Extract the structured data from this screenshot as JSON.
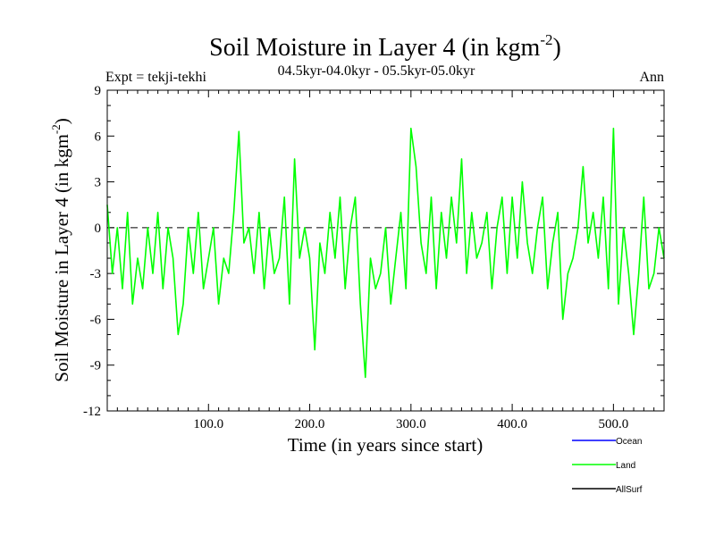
{
  "chart_data": {
    "type": "line",
    "title": "Soil Moisture in Layer 4 (in kgm",
    "title_sup": "-2",
    "title_close": ")",
    "subtitle": "04.5kyr-04.0kyr - 05.5kyr-05.0kyr",
    "left_label": "Expt = tekji-tekhi",
    "right_label": "Ann",
    "xlabel": "Time (in years since start)",
    "ylabel": "Soil Moisture in Layer 4 (in kgm",
    "ylabel_sup": "-2",
    "ylabel_close": ")",
    "xlim": [
      0,
      550
    ],
    "ylim": [
      -12,
      9
    ],
    "xticks": [
      100,
      200,
      300,
      400,
      500
    ],
    "xtick_labels": [
      "100.0",
      "200.0",
      "300.0",
      "400.0",
      "500.0"
    ],
    "yticks": [
      9,
      6,
      3,
      0,
      -3,
      -6,
      -9,
      -12
    ],
    "ytick_labels": [
      "9",
      "6",
      "3",
      "0",
      "-3",
      "-6",
      "-9",
      "-12"
    ],
    "zero_line": {
      "y": 0,
      "style": "dashed"
    },
    "series": [
      {
        "name": "Land",
        "color": "#00ff00",
        "x": [
          0,
          5,
          10,
          15,
          20,
          25,
          30,
          35,
          40,
          45,
          50,
          55,
          60,
          65,
          70,
          75,
          80,
          85,
          90,
          95,
          100,
          105,
          110,
          115,
          120,
          125,
          130,
          135,
          140,
          145,
          150,
          155,
          160,
          165,
          170,
          175,
          180,
          185,
          190,
          195,
          200,
          205,
          210,
          215,
          220,
          225,
          230,
          235,
          240,
          245,
          250,
          255,
          260,
          265,
          270,
          275,
          280,
          285,
          290,
          295,
          300,
          305,
          310,
          315,
          320,
          325,
          330,
          335,
          340,
          345,
          350,
          355,
          360,
          365,
          370,
          375,
          380,
          385,
          390,
          395,
          400,
          405,
          410,
          415,
          420,
          425,
          430,
          435,
          440,
          445,
          450,
          455,
          460,
          465,
          470,
          475,
          480,
          485,
          490,
          495,
          500,
          505,
          510,
          515,
          520,
          525,
          530,
          535,
          540,
          545,
          550
        ],
        "values": [
          1.5,
          -3,
          0,
          -4,
          1,
          -5,
          -2,
          -4,
          0,
          -3,
          1,
          -4,
          0,
          -2,
          -7,
          -5,
          0,
          -3,
          1,
          -4,
          -2,
          0,
          -5,
          -2,
          -3,
          1,
          6.3,
          -1,
          0,
          -3,
          1,
          -4,
          0,
          -3,
          -2,
          2,
          -5,
          4.5,
          -2,
          0,
          -2,
          -8,
          -1,
          -3,
          1,
          -2,
          2,
          -4,
          0,
          2,
          -5,
          -9.8,
          -2,
          -4,
          -3,
          0,
          -5,
          -2,
          1,
          -4,
          6.5,
          4,
          -1,
          -3,
          2,
          -4,
          1,
          -2,
          2,
          -1,
          4.5,
          -3,
          1,
          -2,
          -1,
          1,
          -4,
          0,
          2,
          -3,
          2,
          -2,
          3,
          -1,
          -3,
          0,
          2,
          -4,
          -1,
          1,
          -6,
          -3,
          -2,
          0,
          4,
          -1,
          1,
          -2,
          2,
          -4,
          6.5,
          -5,
          0,
          -3,
          -7,
          -3,
          2,
          -4,
          -3,
          0,
          -2
        ],
        "values_shown_description": "Land series fluctuates roughly between -10 and 7"
      },
      {
        "name": "Ocean",
        "color": "#0000ff",
        "values": []
      },
      {
        "name": "AllSurf",
        "color": "#000000",
        "values": []
      }
    ],
    "legend": {
      "placement": "bottom-right",
      "entries": [
        {
          "label": "Ocean",
          "color": "#0000ff"
        },
        {
          "label": "Land",
          "color": "#00ff00"
        },
        {
          "label": "AllSurf",
          "color": "#000000"
        }
      ]
    }
  }
}
